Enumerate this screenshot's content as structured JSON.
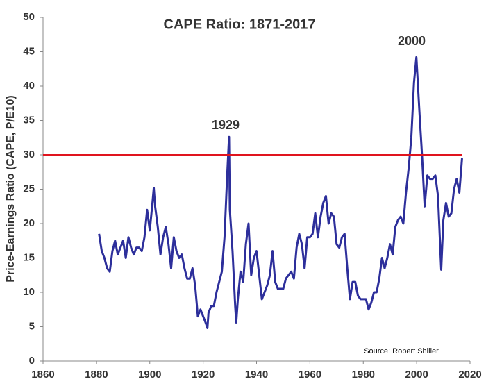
{
  "chart_data": {
    "type": "line",
    "title": "CAPE Ratio: 1871-2017",
    "ylabel": "Price-Earnings Ratio (CAPE, P/E10)",
    "annotations": [
      "1929",
      "2000"
    ],
    "source": "Source: Robert Shiller",
    "reference_line": {
      "value": 30,
      "color": "#e0141e"
    },
    "x": [
      1881,
      1882,
      1883,
      1884,
      1885,
      1886,
      1887,
      1888,
      1889,
      1890,
      1891,
      1892,
      1893,
      1894,
      1895,
      1896,
      1897,
      1898,
      1899,
      1900,
      1901,
      1901.5,
      1902,
      1903,
      1904,
      1905,
      1906,
      1907,
      1908,
      1909,
      1910,
      1911,
      1912,
      1913,
      1914,
      1915,
      1916,
      1917,
      1918,
      1919,
      1920,
      1921,
      1921.6,
      1922,
      1923,
      1924,
      1925,
      1926,
      1927,
      1928,
      1929,
      1929.7,
      1930,
      1931,
      1932,
      1932.4,
      1933,
      1934,
      1935,
      1936,
      1937,
      1938,
      1939,
      1940,
      1941,
      1942,
      1943,
      1944,
      1945,
      1946,
      1947,
      1948,
      1949,
      1950,
      1951,
      1952,
      1953,
      1954,
      1955,
      1956,
      1957,
      1958,
      1959,
      1960,
      1961,
      1962,
      1963,
      1964,
      1965,
      1966,
      1967,
      1968,
      1969,
      1970,
      1971,
      1972,
      1973,
      1974,
      1975,
      1976,
      1977,
      1978,
      1979,
      1980,
      1981,
      1982,
      1983,
      1984,
      1985,
      1986,
      1987,
      1988,
      1989,
      1990,
      1991,
      1992,
      1993,
      1994,
      1995,
      1996,
      1997,
      1998,
      1999,
      1999.9,
      2000,
      2001,
      2002,
      2003,
      2004,
      2005,
      2006,
      2007,
      2008,
      2009,
      2009.2,
      2010,
      2011,
      2012,
      2013,
      2014,
      2015,
      2016,
      2017
    ],
    "series": [
      {
        "name": "CAPE",
        "color": "#2d2f9b",
        "values": [
          18.5,
          16,
          15,
          13.5,
          13,
          16,
          17.5,
          15.5,
          16.5,
          17.5,
          15,
          18,
          16.5,
          15.5,
          16.5,
          16.5,
          16,
          18,
          22,
          19,
          23,
          25.2,
          22.5,
          19.5,
          15.5,
          18,
          19.5,
          17,
          13.5,
          18,
          16,
          15,
          15.5,
          13.5,
          12,
          12,
          13.5,
          11,
          6.5,
          7.5,
          6.5,
          5.5,
          4.8,
          7,
          8,
          8,
          10,
          11.5,
          13,
          18,
          27,
          32.6,
          22,
          16,
          8,
          5.6,
          9,
          13,
          11.5,
          17,
          20,
          12.5,
          15,
          16,
          12.5,
          9,
          10,
          11,
          12.5,
          16,
          11.5,
          10.5,
          10.5,
          10.5,
          12,
          12.5,
          13,
          12,
          16.5,
          18.5,
          17,
          13.5,
          18,
          18,
          18.5,
          21.5,
          18,
          21,
          23,
          24,
          20,
          21.5,
          21,
          17,
          16.5,
          18,
          18.5,
          13.5,
          9,
          11.5,
          11.5,
          9.5,
          9,
          9,
          9,
          7.5,
          8.5,
          10,
          10,
          12,
          15,
          13.5,
          15,
          17,
          15.5,
          19.5,
          20.5,
          21,
          20,
          24.5,
          28,
          32.5,
          40.5,
          44.2,
          43.5,
          36.5,
          30,
          22.5,
          27,
          26.5,
          26.5,
          27,
          24,
          15,
          13.3,
          20.5,
          23,
          21,
          21.5,
          25,
          26.5,
          24.5,
          29.5
        ]
      }
    ],
    "xlim": [
      1860,
      2020
    ],
    "ylim": [
      0,
      50
    ],
    "xticks": [
      1860,
      1880,
      1900,
      1920,
      1940,
      1960,
      1980,
      2000,
      2020
    ],
    "yticks": [
      0,
      5,
      10,
      15,
      20,
      25,
      30,
      35,
      40,
      45,
      50
    ]
  }
}
